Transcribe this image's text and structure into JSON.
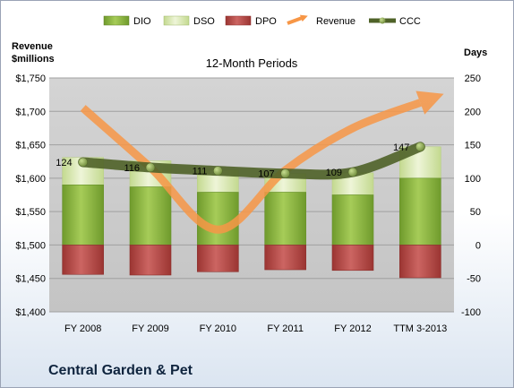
{
  "chart_data": {
    "type": "bar",
    "subtitle": "12-Month Periods",
    "company": "Central Garden & Pet",
    "categories": [
      "FY 2008",
      "FY 2009",
      "FY 2010",
      "FY 2011",
      "FY 2012",
      "TTM 3-2013"
    ],
    "left_axis": {
      "label_line1": "Revenue",
      "label_line2": "$millions",
      "ticks": [
        "$1,400",
        "$1,450",
        "$1,500",
        "$1,550",
        "$1,600",
        "$1,650",
        "$1,700",
        "$1,750"
      ],
      "range": [
        1400,
        1750
      ]
    },
    "right_axis": {
      "label": "Days",
      "ticks": [
        "-100",
        "-50",
        "0",
        "50",
        "100",
        "150",
        "200",
        "250"
      ],
      "range": [
        -100,
        250
      ]
    },
    "legend": {
      "position": "top",
      "items": [
        {
          "label": "DIO",
          "kind": "bar",
          "color": "#8db83f"
        },
        {
          "label": "DSO",
          "kind": "bar",
          "color": "#d8e7b0"
        },
        {
          "label": "DPO",
          "kind": "bar",
          "color": "#c0504d"
        },
        {
          "label": "Revenue",
          "kind": "arrow",
          "color": "#f79646"
        },
        {
          "label": "CCC",
          "kind": "line-marker",
          "color": "#4f6228"
        }
      ]
    },
    "series": [
      {
        "name": "DIO",
        "axis": "right",
        "values": [
          90,
          87,
          79,
          79,
          75,
          100
        ]
      },
      {
        "name": "DSO",
        "axis": "right",
        "values": [
          41,
          39,
          33,
          28,
          33,
          47
        ]
      },
      {
        "name": "DPO",
        "axis": "right",
        "values": [
          -44,
          -45,
          -40,
          -37,
          -38,
          -49
        ]
      },
      {
        "name": "Revenue",
        "axis": "left",
        "values": [
          1705,
          1616,
          1523,
          1612,
          1675,
          1713
        ]
      },
      {
        "name": "CCC",
        "axis": "right",
        "values": [
          124,
          116,
          111,
          107,
          109,
          147
        ],
        "labels": [
          "124",
          "116",
          "111",
          "107",
          "109",
          "147"
        ]
      }
    ],
    "grid": true,
    "colors": {
      "plot_bg": "#c8c8c8",
      "dio": "#8db83f",
      "dso": "#d8e7b0",
      "dpo": "#c0504d",
      "revenue": "#f79646",
      "ccc": "#4f6228"
    }
  }
}
